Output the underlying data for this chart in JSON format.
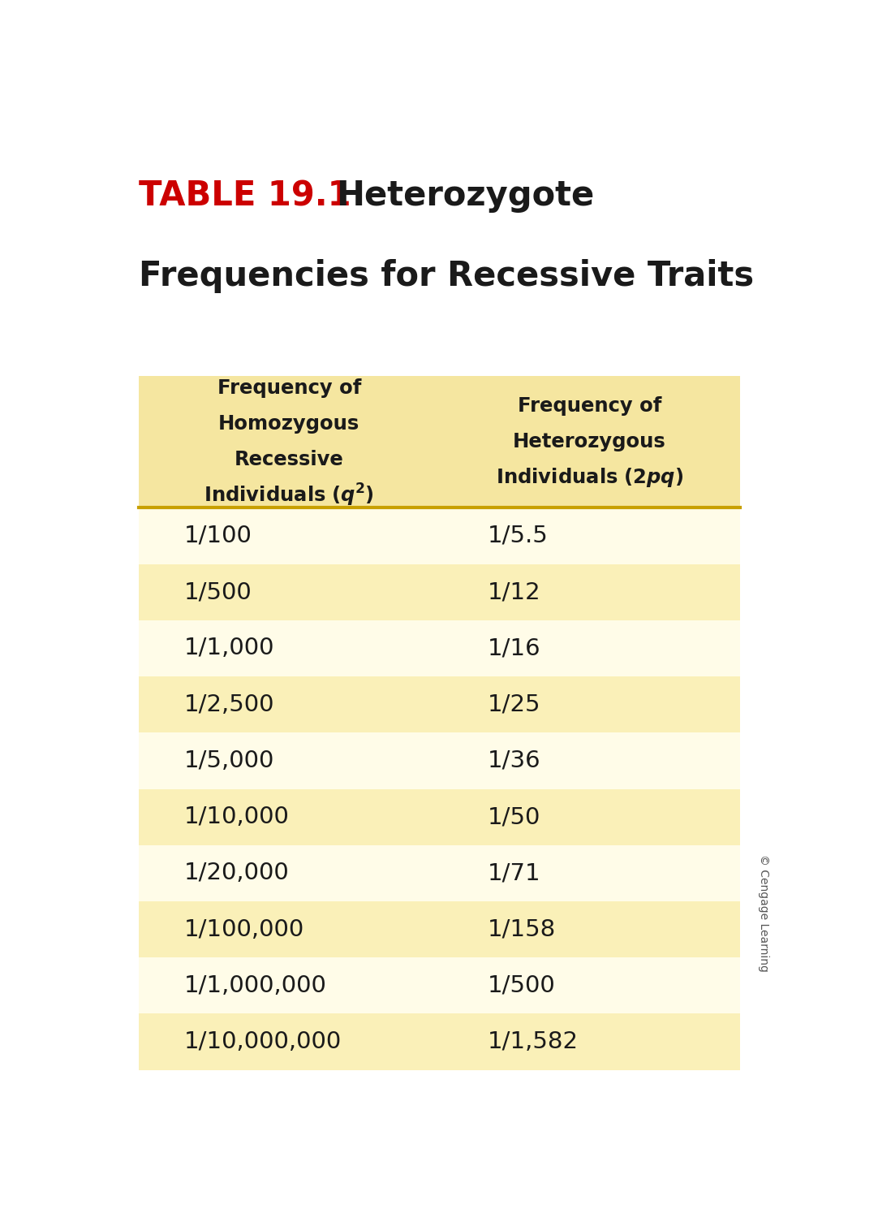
{
  "title_red": "TABLE 19.1",
  "title_black1": "Heterozygote",
  "title_black2": "Frequencies for Recessive Traits",
  "col1_header": [
    "Frequency of",
    "Homozygous",
    "Recessive",
    "Individuals (",
    "q",
    "²",
    ")"
  ],
  "col2_header": [
    "Frequency of",
    "Heterozygous",
    "Individuals (2",
    "pq",
    ")"
  ],
  "col1_data": [
    "1/100",
    "1/500",
    "1/1,000",
    "1/2,500",
    "1/5,000",
    "1/10,000",
    "1/20,000",
    "1/100,000",
    "1/1,000,000",
    "1/10,000,000"
  ],
  "col2_data": [
    "1/5.5",
    "1/12",
    "1/16",
    "1/25",
    "1/36",
    "1/50",
    "1/71",
    "1/158",
    "1/500",
    "1/1,582"
  ],
  "header_bg": "#F5E6A0",
  "row_bg_light": "#FFFCE8",
  "row_bg_mid": "#FAF0B8",
  "background": "#FFFFFF",
  "header_text_color": "#1A1A1A",
  "data_text_color": "#1A1A1A",
  "separator_color": "#C8A000",
  "title_red_color": "#CC0000",
  "watermark_text": "© Cengage Learning",
  "figsize": [
    10.98,
    15.0
  ],
  "dpi": 100
}
